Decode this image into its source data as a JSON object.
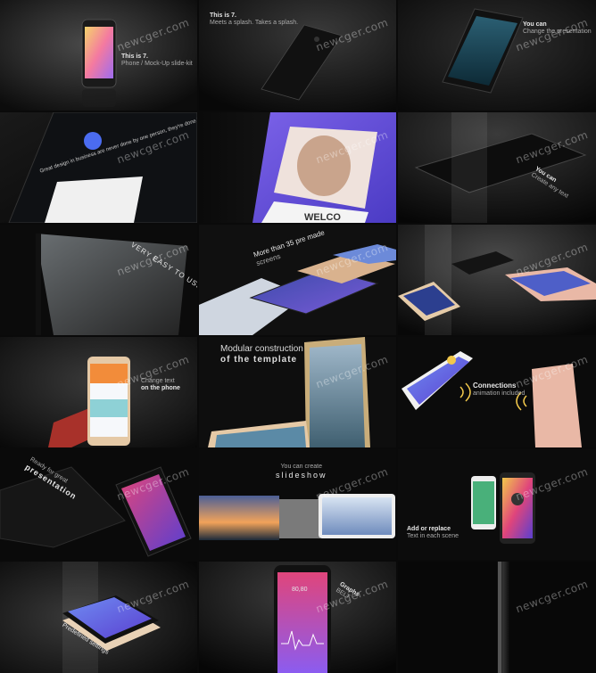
{
  "watermark": "newcger.com",
  "tiles": [
    {
      "id": "t1",
      "caption_title": "This is 7.",
      "caption_sub": "Phone / Mock-Up slide-kit"
    },
    {
      "id": "t2",
      "caption_title": "This is 7.",
      "caption_sub": "Meets a splash. Takes a splash."
    },
    {
      "id": "t3",
      "caption_title": "You can",
      "caption_sub": "Change the presentation"
    },
    {
      "id": "t4",
      "caption_title": "Great design in business are never done by one person, they're done by a team of people."
    },
    {
      "id": "t5",
      "caption_title": "WELCO"
    },
    {
      "id": "t6",
      "caption_title": "You can",
      "caption_sub": "Create any text"
    },
    {
      "id": "t7",
      "caption_title": "VERY EASY TO USE"
    },
    {
      "id": "t8",
      "caption_title": "More than 35 pre made",
      "caption_sub": "screens"
    },
    {
      "id": "t9"
    },
    {
      "id": "t10",
      "caption_title": "Change text",
      "caption_sub": "on the phone"
    },
    {
      "id": "t11",
      "caption_title": "Modular construction",
      "caption_sub": "of the template"
    },
    {
      "id": "t12",
      "caption_title": "Connections",
      "caption_sub": "animation included"
    },
    {
      "id": "t13",
      "caption_title": "Ready for great",
      "caption_sub": "presentation"
    },
    {
      "id": "t14",
      "caption_title": "You can create",
      "caption_sub": "slideshow"
    },
    {
      "id": "t15",
      "caption_title": "Add or replace",
      "caption_sub": "Text in each scene"
    },
    {
      "id": "t16",
      "caption_title": "Predefined settings"
    },
    {
      "id": "t17",
      "caption_title": "Graphs",
      "caption_sub": "BELT",
      "screen_values": "80,80"
    },
    {
      "id": "t18"
    }
  ],
  "colors": {
    "bg": "#0b0b0b",
    "purple": "#6b4dd6",
    "pink": "#e0457b",
    "rose_gold": "#e9b8a6",
    "gold": "#d8c19a"
  }
}
